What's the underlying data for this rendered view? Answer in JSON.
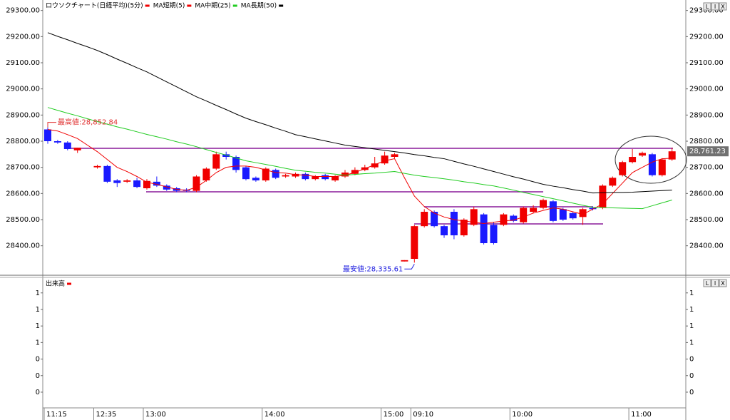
{
  "chart_data": [
    {
      "type": "candlestick",
      "categories": [
        "11:15",
        null,
        null,
        null,
        null,
        "12:35",
        null,
        null,
        null,
        null,
        "13:00",
        null,
        null,
        null,
        null,
        null,
        null,
        null,
        null,
        null,
        null,
        null,
        "14:00",
        null,
        null,
        null,
        null,
        null,
        null,
        null,
        null,
        null,
        null,
        null,
        "15:00",
        null,
        null,
        "09:10",
        null,
        null,
        null,
        null,
        null,
        null,
        null,
        null,
        null,
        "10:00",
        null,
        null,
        null,
        null,
        null,
        null,
        null,
        null,
        null,
        null,
        null,
        "11:00",
        null,
        null,
        null,
        null
      ],
      "series": [
        {
          "name": "ロウソクチャート(日経平均)(5分)",
          "color": "#f00000",
          "down_color": "#1a1aff",
          "open": [
            28845,
            28800,
            28795,
            28765,
            null,
            28700,
            28705,
            28650,
            28645,
            28650,
            28620,
            28645,
            28630,
            28620,
            28615,
            28610,
            28650,
            28695,
            28750,
            28740,
            28700,
            28660,
            28650,
            28690,
            28665,
            28665,
            28675,
            28655,
            28670,
            28650,
            28665,
            28675,
            28690,
            28700,
            28715,
            28740,
            28340,
            28350,
            28475,
            28530,
            28475,
            28530,
            28440,
            28480,
            28520,
            28480,
            28480,
            28515,
            28490,
            28530,
            28545,
            28570,
            28540,
            28525,
            28510,
            28545,
            28545,
            28630,
            28670,
            28720,
            28745,
            28750,
            28670,
            28730
          ],
          "high": [
            28852.84,
            28805,
            28800,
            28775,
            null,
            28710,
            28710,
            28655,
            28655,
            28660,
            28655,
            28665,
            28635,
            28625,
            28620,
            28670,
            28700,
            28760,
            28760,
            28745,
            28705,
            28665,
            28700,
            28695,
            28675,
            28680,
            28680,
            28670,
            28675,
            28670,
            28690,
            28700,
            28710,
            28740,
            28760,
            28755,
            28345,
            28480,
            28540,
            28535,
            28480,
            28540,
            28505,
            28550,
            28525,
            28490,
            28525,
            28520,
            28550,
            28555,
            28580,
            28575,
            28545,
            28530,
            28545,
            28550,
            28635,
            28665,
            28725,
            28770,
            28760,
            28755,
            28735,
            28775
          ],
          "low": [
            28790,
            28790,
            28765,
            28755,
            null,
            28695,
            28640,
            28625,
            28640,
            28620,
            28615,
            28625,
            28610,
            28605,
            28605,
            28605,
            28645,
            28690,
            28730,
            28680,
            28650,
            28645,
            28645,
            28655,
            28660,
            28660,
            28650,
            28650,
            28650,
            28645,
            28660,
            28670,
            28685,
            28695,
            28710,
            28735,
            28340,
            28335.61,
            28470,
            28470,
            28430,
            28425,
            28435,
            28475,
            28405,
            28405,
            28475,
            28490,
            28485,
            28525,
            28540,
            28490,
            28495,
            28500,
            28480,
            28535,
            28540,
            28625,
            28665,
            28715,
            28740,
            28665,
            28665,
            28725
          ],
          "close": [
            28800,
            28795,
            28770,
            28775,
            null,
            28705,
            28645,
            28640,
            28650,
            28625,
            28648,
            28630,
            28615,
            28610,
            28610,
            28665,
            28695,
            28750,
            28740,
            28690,
            28655,
            28650,
            28695,
            28660,
            28670,
            28675,
            28655,
            28665,
            28655,
            28665,
            28680,
            28690,
            28700,
            28715,
            28745,
            28750,
            28345,
            28475,
            28530,
            28475,
            28440,
            28440,
            28500,
            28540,
            28410,
            28410,
            28520,
            28495,
            28545,
            28545,
            28575,
            28495,
            28500,
            28505,
            28540,
            28540,
            28630,
            28660,
            28720,
            28740,
            28755,
            28670,
            28730,
            28761.23
          ]
        },
        {
          "name": "MA短期(5)",
          "type": "line",
          "color": "#f00000",
          "values": [
            28845,
            28839,
            28825,
            28810,
            28785,
            28760,
            28730,
            28700,
            28684,
            28665,
            28643,
            28635,
            28625,
            28616,
            28612,
            28624,
            28650,
            28680,
            28700,
            28705,
            28705,
            28700,
            28690,
            28680,
            28678,
            28672,
            28670,
            28665,
            28665,
            28665,
            28670,
            28680,
            28695,
            28710,
            28725,
            28733,
            28660,
            28590,
            28550,
            28525,
            28510,
            28500,
            28495,
            28490,
            28485,
            28490,
            28495,
            28498,
            28510,
            28525,
            28535,
            28545,
            28540,
            28530,
            28520,
            28540,
            28560,
            28600,
            28640,
            28680,
            28700,
            28720,
            28733,
            28735
          ]
        },
        {
          "name": "MA中期(25)",
          "type": "line",
          "color": "#22cc22",
          "values": [
            28929,
            28918,
            28907,
            28897,
            28886,
            28875,
            28865,
            28855,
            28846,
            28836,
            28826,
            28817,
            28808,
            28798,
            28789,
            28779,
            28768,
            28757,
            28747,
            28736,
            28725,
            28718,
            28711,
            28704,
            28696,
            28689,
            28685,
            28681,
            28678,
            28674,
            28670,
            28673,
            28676,
            28678,
            28681,
            28684,
            28677,
            28670,
            28665,
            28661,
            28656,
            28651,
            28645,
            28640,
            28634,
            28629,
            28621,
            28613,
            28604,
            28596,
            28588,
            28580,
            28572,
            28563,
            28555,
            28547,
            28546,
            28545,
            28544,
            28543,
            28542,
            28553,
            28564,
            28575
          ]
        },
        {
          "name": "MA長期(50)",
          "type": "line",
          "color": "#000000",
          "values": [
            29215,
            29201,
            29188,
            29174,
            29161,
            29147,
            29131,
            29114,
            29098,
            29081,
            29065,
            29046,
            29027,
            29008,
            28989,
            28970,
            28954,
            28937,
            28921,
            28904,
            28888,
            28875,
            28863,
            28850,
            28838,
            28825,
            28817,
            28809,
            28801,
            28793,
            28785,
            28780,
            28775,
            28770,
            28765,
            28760,
            28755,
            28749,
            28744,
            28738,
            28733,
            28723,
            28713,
            28704,
            28694,
            28684,
            28674,
            28664,
            28655,
            28645,
            28635,
            28628,
            28622,
            28615,
            28609,
            28602,
            28603,
            28604,
            28604,
            28605,
            28607,
            28609,
            28611,
            28613
          ]
        }
      ],
      "ylim": [
        28290,
        29340
      ],
      "yticks": [
        {
          "value": 29300,
          "label": "29300.00"
        },
        {
          "value": 29200,
          "label": "29200.00"
        },
        {
          "value": 29100,
          "label": "29100.00"
        },
        {
          "value": 29000,
          "label": "29000.00"
        },
        {
          "value": 28900,
          "label": "28900.00"
        },
        {
          "value": 28800,
          "label": "28800.00"
        },
        {
          "value": 28700,
          "label": "28700.00"
        },
        {
          "value": 28600,
          "label": "28600.00"
        },
        {
          "value": 28500,
          "label": "28500.00"
        },
        {
          "value": 28400,
          "label": "28400.00"
        }
      ],
      "annotations": [
        {
          "text": "最高値:28,852.84",
          "value": 28852.84,
          "color": "#e03030"
        },
        {
          "text": "最安値:28,335.61",
          "value": 28335.61,
          "color": "#2020e0"
        }
      ],
      "last_price": {
        "value": 28761.23,
        "label": "28,761.23"
      }
    },
    {
      "type": "bar",
      "series": [
        {
          "name": "出来高",
          "color": "#f00000"
        }
      ],
      "ylim": [
        -0.19,
        1.31
      ],
      "yticks": [
        {
          "value": 1.2,
          "label": "1"
        },
        {
          "value": 1,
          "label": "1"
        },
        {
          "value": 0.8,
          "label": "1"
        },
        {
          "value": 0.6,
          "label": "1"
        },
        {
          "value": 0.4,
          "label": "0"
        },
        {
          "value": 0.2,
          "label": "0"
        },
        {
          "value": 0,
          "label": "0"
        }
      ]
    }
  ],
  "controls": {
    "buttons": [
      "L",
      "I",
      "X"
    ]
  }
}
